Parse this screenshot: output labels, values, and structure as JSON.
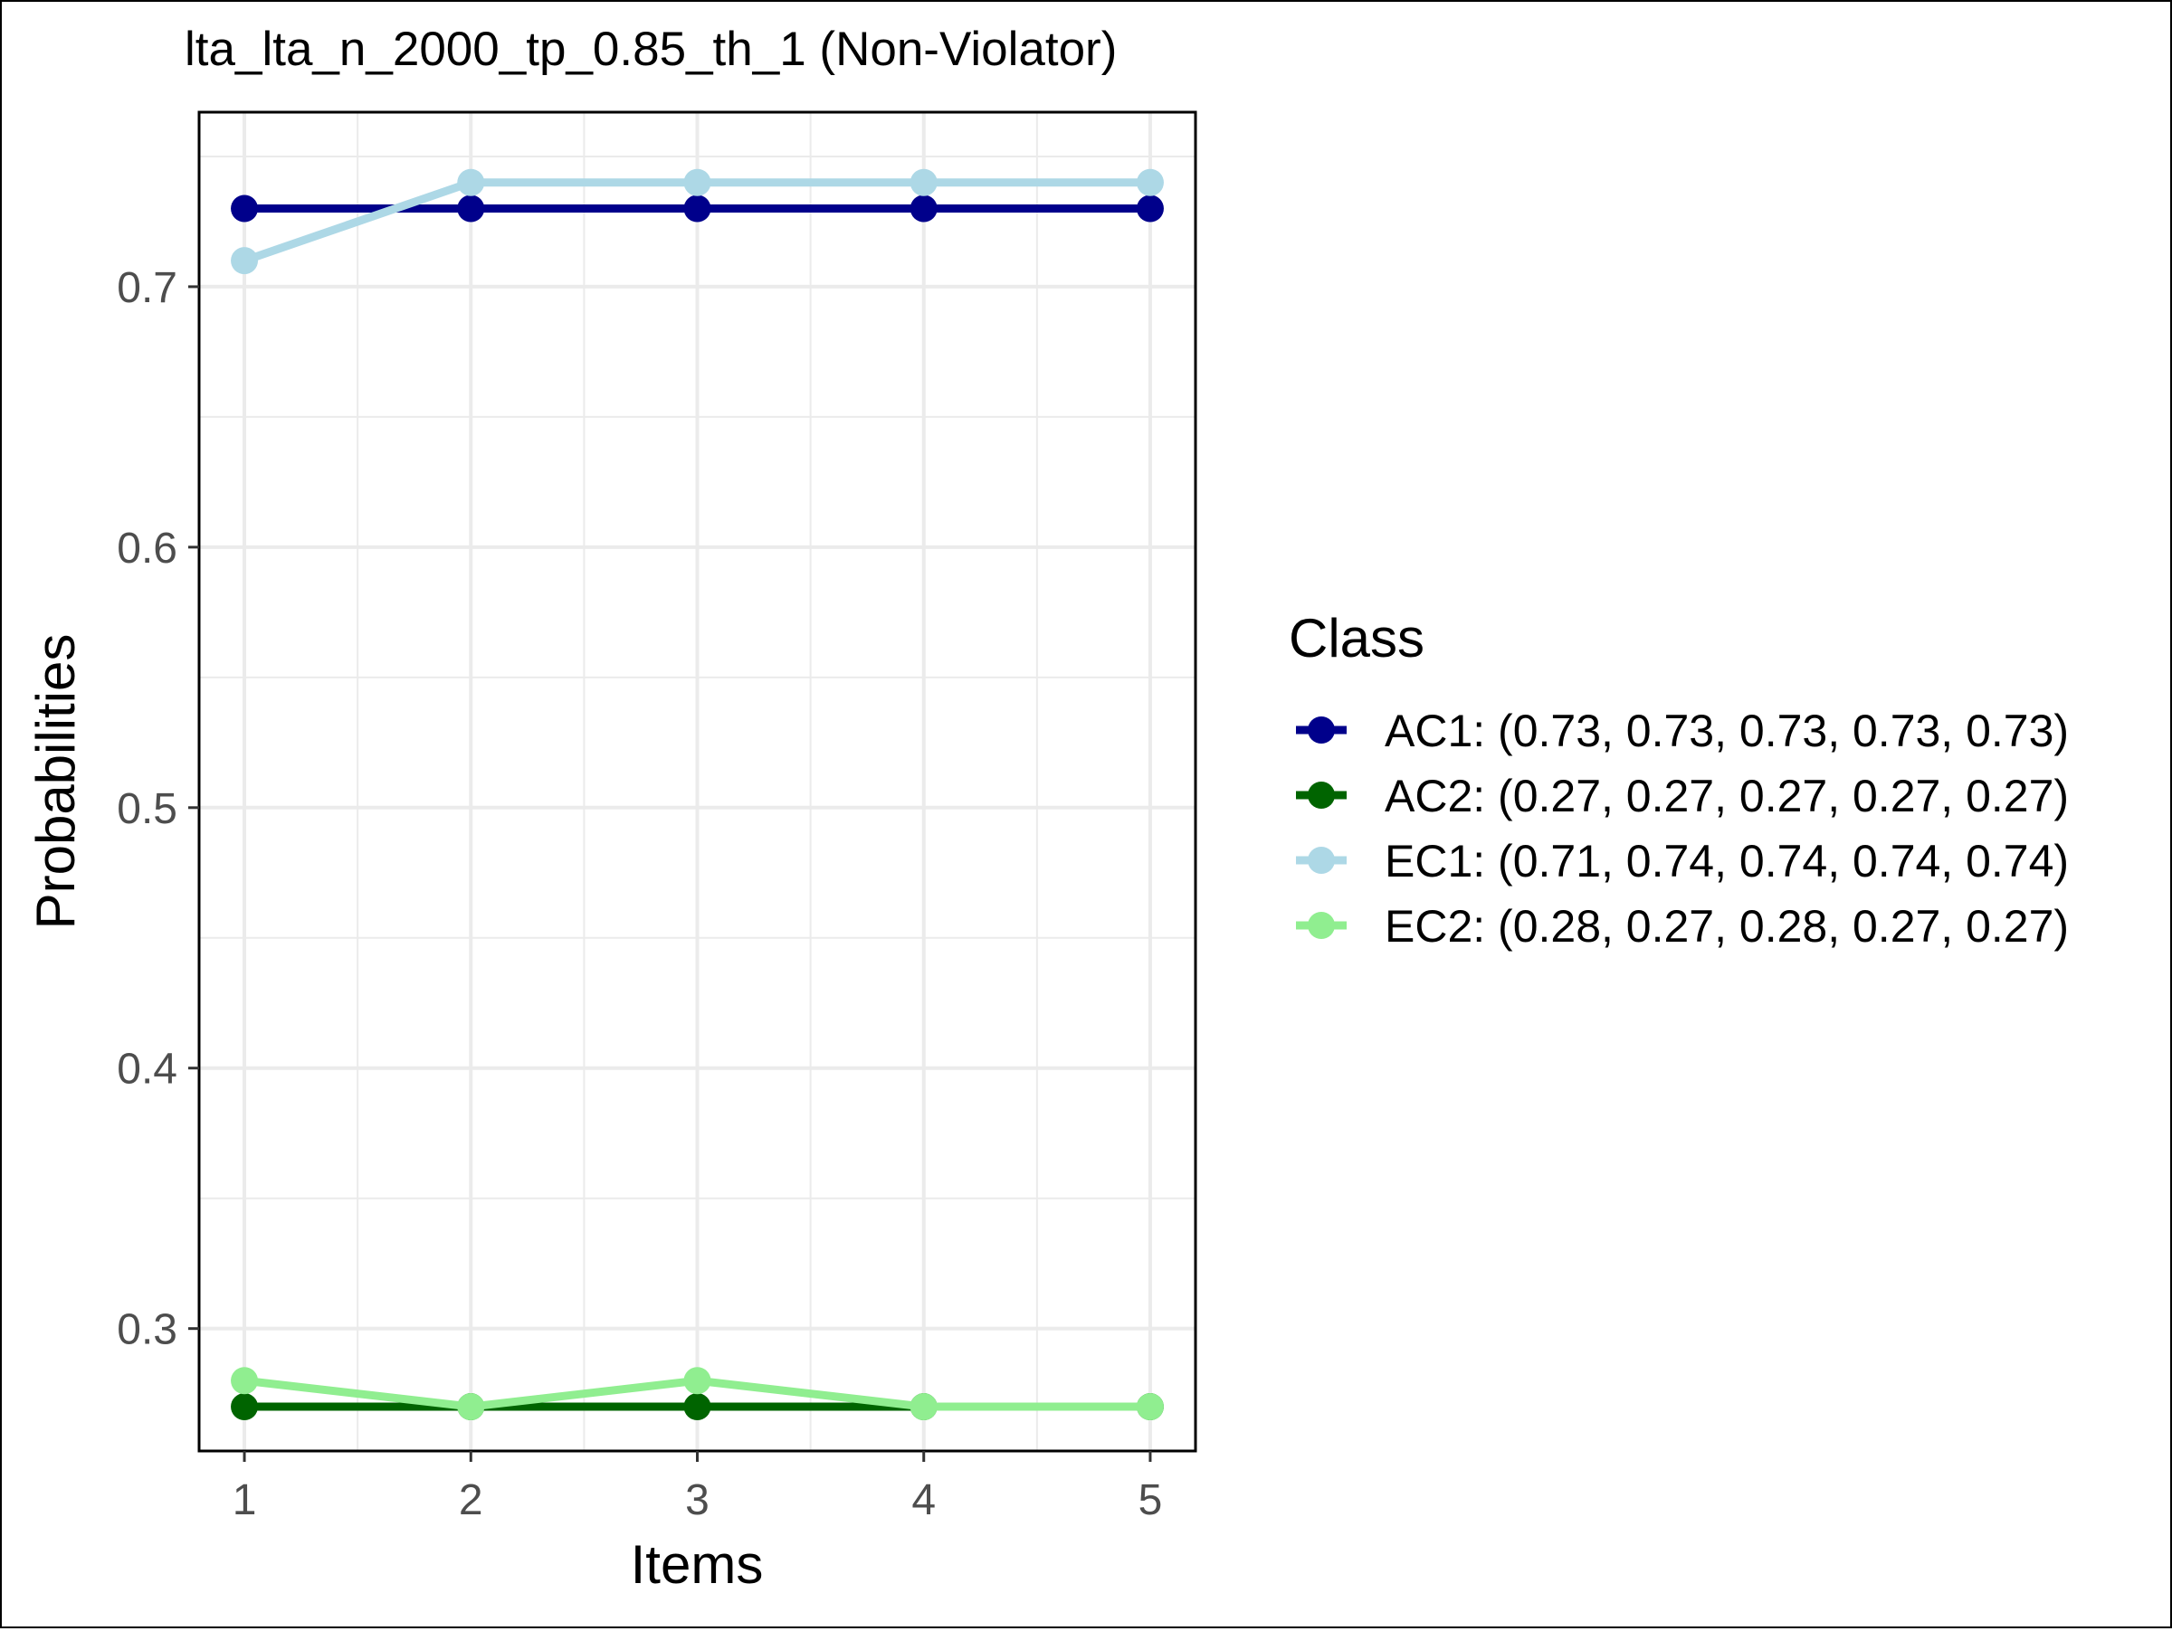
{
  "chart_data": {
    "type": "line",
    "title": "lta_lta_n_2000_tp_0.85_th_1 (Non-Violator)",
    "xlabel": "Items",
    "ylabel": "Probabilities",
    "x": [
      1,
      2,
      3,
      4,
      5
    ],
    "x_tick_labels": [
      "1",
      "2",
      "3",
      "4",
      "5"
    ],
    "y_ticks": [
      0.3,
      0.4,
      0.5,
      0.6,
      0.7
    ],
    "y_tick_labels": [
      "0.3",
      "0.4",
      "0.5",
      "0.6",
      "0.7"
    ],
    "xlim": [
      0.8,
      5.2
    ],
    "ylim": [
      0.253,
      0.767
    ],
    "grid": true,
    "legend": {
      "title": "Class",
      "position": "right"
    },
    "series": [
      {
        "name": "AC1",
        "label": "AC1: (0.73, 0.73, 0.73, 0.73, 0.73)",
        "values": [
          0.73,
          0.73,
          0.73,
          0.73,
          0.73
        ],
        "color": "#00008b"
      },
      {
        "name": "AC2",
        "label": "AC2: (0.27, 0.27, 0.27, 0.27, 0.27)",
        "values": [
          0.27,
          0.27,
          0.27,
          0.27,
          0.27
        ],
        "color": "#006400"
      },
      {
        "name": "EC1",
        "label": "EC1: (0.71, 0.74, 0.74, 0.74, 0.74)",
        "values": [
          0.71,
          0.74,
          0.74,
          0.74,
          0.74
        ],
        "color": "#add8e6"
      },
      {
        "name": "EC2",
        "label": "EC2: (0.28, 0.27, 0.28, 0.27, 0.27)",
        "values": [
          0.28,
          0.27,
          0.28,
          0.27,
          0.27
        ],
        "color": "#90ee90"
      }
    ],
    "draw_order": [
      0,
      1,
      2,
      3
    ]
  }
}
